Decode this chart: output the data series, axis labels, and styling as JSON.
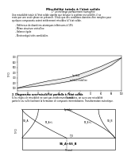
{
  "title_top": "Miscibilité totale à l'état solide",
  "subtitle_top": "1° un mélange parfaitement homogène",
  "body_text_lines": [
    "Une miscibilité totale à l'état solide signifie que lorsque la système est solidifié, il ne",
    "reste par une seule phase en présence. Il faut que des conditions données être remplies pour",
    "quelques composants soient entièrement miscibles à l'état solide."
  ],
  "bullets": [
    "Différence de diamètres atomiques inférieures à 15%",
    "Même structure cristalline",
    "Valence égale",
    "Électronégativités semblables"
  ],
  "section2_title": "2. Diagramme avec miscibilité partielle à l'état solide",
  "section2_body_lines": [
    "Si les règles de miscibilité ne sont pas entièrement satisfaites, on aura une miscibilité",
    "partielle ou nulle facilitant la formation de composés intermédiaires. Transformation eutectique."
  ],
  "chart1_ylabel": "T(°C)",
  "chart1_xlabel": "% mol",
  "chart1_liquidus_label": "liquidus",
  "chart1_solidus_label": "solidus cristalline",
  "chart1_x": [
    0,
    10,
    20,
    30,
    40,
    50,
    60,
    70,
    80,
    90,
    100
  ],
  "chart1_liquidus_y": [
    100,
    150,
    195,
    238,
    268,
    308,
    368,
    438,
    515,
    605,
    685
  ],
  "chart1_solidus_y": [
    100,
    118,
    140,
    165,
    195,
    230,
    285,
    355,
    435,
    538,
    685
  ],
  "chart2_label_liquidus": "liquidus",
  "chart2_label_SSA": "SS_A",
  "chart2_label_SSB": "SS_B",
  "chart2_label_TE": "T_E",
  "chart2_label_SSApL": "SS_A+L",
  "chart2_label_SSBpL": "SS_B+L",
  "chart2_label_center": "SS_A+SS_B",
  "chart2_xlabel": "% mol",
  "background_color": "#ffffff",
  "text_color": "#000000",
  "pdf_watermark_color": "#cccccc"
}
